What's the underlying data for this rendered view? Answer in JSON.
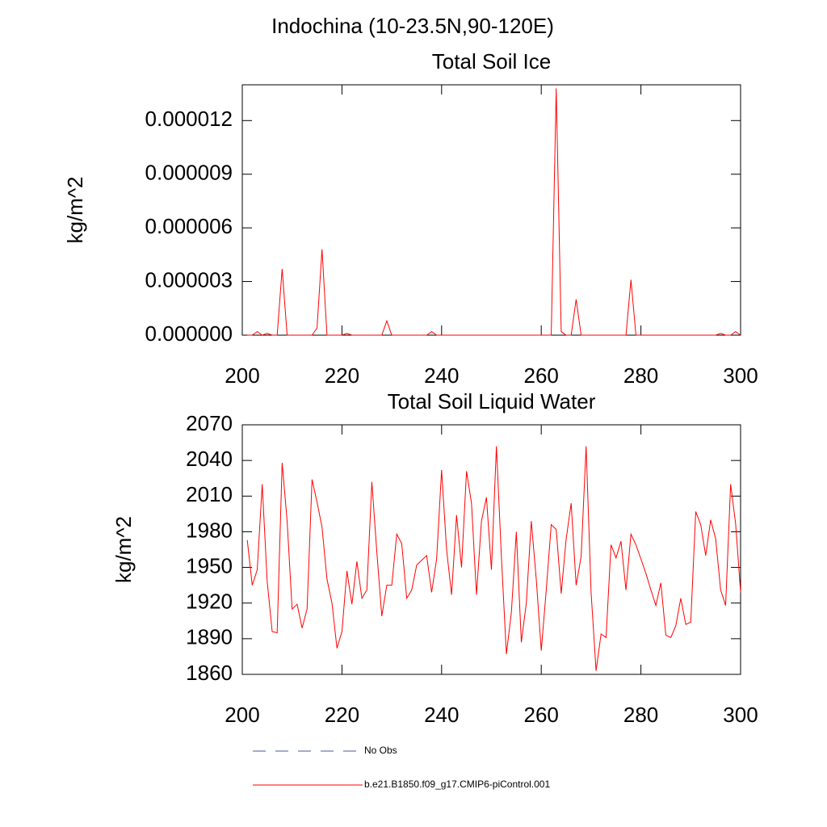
{
  "title": "Indochina (10-23.5N,90-120E)",
  "legend": [
    {
      "name": "No Obs",
      "color": "#4a5a9a",
      "dash": true
    },
    {
      "name": "b.e21.B1850.f09_g17.CMIP6-piControl.001",
      "color": "#ff0000",
      "dash": false
    }
  ],
  "chart_data": [
    {
      "type": "line",
      "title": "Total Soil Ice",
      "y_label": "kg/m^2",
      "x": [
        201,
        202,
        203,
        204,
        205,
        206,
        207,
        208,
        209,
        210,
        211,
        212,
        213,
        214,
        215,
        216,
        217,
        218,
        219,
        220,
        221,
        222,
        223,
        224,
        225,
        226,
        227,
        228,
        229,
        230,
        231,
        232,
        233,
        234,
        235,
        236,
        237,
        238,
        239,
        240,
        241,
        242,
        243,
        244,
        245,
        246,
        247,
        248,
        249,
        250,
        251,
        252,
        253,
        254,
        255,
        256,
        257,
        258,
        259,
        260,
        261,
        262,
        263,
        264,
        265,
        266,
        267,
        268,
        269,
        270,
        271,
        272,
        273,
        274,
        275,
        276,
        277,
        278,
        279,
        280,
        281,
        282,
        283,
        284,
        285,
        286,
        287,
        288,
        289,
        290,
        291,
        292,
        293,
        294,
        295,
        296,
        297,
        298,
        299,
        300
      ],
      "series": [
        {
          "color": "#ff0000",
          "values": [
            0,
            0,
            2e-07,
            0,
            1e-07,
            0,
            0,
            3.7e-06,
            0,
            0,
            0,
            0,
            0,
            0,
            4e-07,
            4.8e-06,
            0,
            0,
            0,
            0,
            1e-07,
            0,
            0,
            0,
            0,
            0,
            0,
            0,
            8e-07,
            0,
            0,
            0,
            0,
            0,
            0,
            0,
            0,
            2e-07,
            0,
            0,
            0,
            0,
            0,
            0,
            0,
            0,
            0,
            0,
            0,
            0,
            0,
            0,
            0,
            0,
            0,
            0,
            0,
            0,
            0,
            0,
            0,
            0,
            1.38e-05,
            2e-07,
            0,
            0,
            2e-06,
            0,
            0,
            0,
            0,
            0,
            0,
            0,
            0,
            0,
            0,
            3.1e-06,
            0,
            0,
            0,
            0,
            0,
            0,
            0,
            0,
            0,
            0,
            0,
            0,
            0,
            0,
            0,
            0,
            0,
            1e-07,
            0,
            0,
            2e-07,
            0
          ]
        }
      ],
      "xlim": [
        200,
        300
      ],
      "xticks": [
        200,
        220,
        240,
        260,
        280,
        300
      ],
      "ylim": [
        0,
        1.4e-05
      ],
      "yticks": [
        {
          "value": 0,
          "label": "0.000000"
        },
        {
          "value": 3e-06,
          "label": "0.000003"
        },
        {
          "value": 6e-06,
          "label": "0.000006"
        },
        {
          "value": 9e-06,
          "label": "0.000009"
        },
        {
          "value": 1.2e-05,
          "label": "0.000012"
        }
      ],
      "grid": false
    },
    {
      "type": "line",
      "title": "Total Soil Liquid Water",
      "y_label": "kg/m^2",
      "x": [
        201,
        202,
        203,
        204,
        205,
        206,
        207,
        208,
        209,
        210,
        211,
        212,
        213,
        214,
        215,
        216,
        217,
        218,
        219,
        220,
        221,
        222,
        223,
        224,
        225,
        226,
        227,
        228,
        229,
        230,
        231,
        232,
        233,
        234,
        235,
        236,
        237,
        238,
        239,
        240,
        241,
        242,
        243,
        244,
        245,
        246,
        247,
        248,
        249,
        250,
        251,
        252,
        253,
        254,
        255,
        256,
        257,
        258,
        259,
        260,
        261,
        262,
        263,
        264,
        265,
        266,
        267,
        268,
        269,
        270,
        271,
        272,
        273,
        274,
        275,
        276,
        277,
        278,
        279,
        280,
        281,
        282,
        283,
        284,
        285,
        286,
        287,
        288,
        289,
        290,
        291,
        292,
        293,
        294,
        295,
        296,
        297,
        298,
        299,
        300
      ],
      "series": [
        {
          "color": "#ff0000",
          "values": [
            1973,
            1935,
            1948,
            2020,
            1938,
            1896,
            1895,
            2038,
            1989,
            1915,
            1919,
            1899,
            1915,
            2024,
            2005,
            1984,
            1940,
            1920,
            1882,
            1896,
            1947,
            1919,
            1955,
            1924,
            1931,
            2022,
            1963,
            1909,
            1935,
            1935,
            1978,
            1970,
            1924,
            1931,
            1952,
            1956,
            1960,
            1929,
            1957,
            2032,
            1965,
            1927,
            1994,
            1950,
            2031,
            2004,
            1927,
            1989,
            2009,
            1948,
            2052,
            1959,
            1877,
            1912,
            1980,
            1887,
            1920,
            1989,
            1940,
            1880,
            1931,
            1986,
            1982,
            1928,
            1974,
            2004,
            1935,
            1959,
            2052,
            1929,
            1863,
            1894,
            1891,
            1969,
            1958,
            1972,
            1931,
            1978,
            1969,
            1957,
            1945,
            1931,
            1918,
            1937,
            1893,
            1891,
            1901,
            1924,
            1902,
            1904,
            1997,
            1986,
            1960,
            1990,
            1974,
            1931,
            1918,
            2020,
            1987,
            1929
          ]
        }
      ],
      "xlim": [
        200,
        300
      ],
      "xticks": [
        200,
        220,
        240,
        260,
        280,
        300
      ],
      "ylim": [
        1860,
        2070
      ],
      "yticks": [
        1860,
        1890,
        1920,
        1950,
        1980,
        2010,
        2040,
        2070
      ],
      "grid": false
    }
  ]
}
